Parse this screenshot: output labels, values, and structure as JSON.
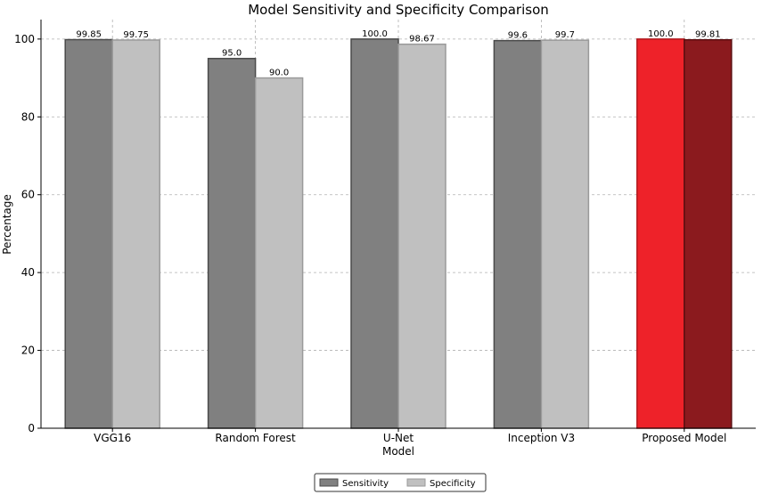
{
  "chart_data": {
    "type": "bar",
    "title": "Model Sensitivity and Specificity Comparison",
    "xlabel": "Model",
    "ylabel": "Percentage",
    "ylim": [
      0,
      105
    ],
    "yticks": [
      0,
      20,
      40,
      60,
      80,
      100
    ],
    "grid": true,
    "legend_position": "bottom-center",
    "categories": [
      "VGG16",
      "Random Forest",
      "U-Net",
      "Inception V3",
      "Proposed Model"
    ],
    "series": [
      {
        "name": "Sensitivity",
        "values": [
          99.85,
          95.0,
          100.0,
          99.6,
          100.0
        ],
        "labels": [
          "99.85",
          "95.0",
          "100.0",
          "99.6",
          "100.0"
        ],
        "color": "#808080",
        "edge": "#4a4a4a"
      },
      {
        "name": "Specificity",
        "values": [
          99.75,
          90.0,
          98.67,
          99.7,
          99.81
        ],
        "labels": [
          "99.75",
          "90.0",
          "98.67",
          "99.7",
          "99.81"
        ],
        "color": "#c0c0c0",
        "edge": "#9a9a9a"
      }
    ],
    "highlight": {
      "category_index": 4,
      "colors": [
        "#ee2229",
        "#8b1a1e"
      ],
      "edges": [
        "#b01a1e",
        "#5a0e10"
      ]
    }
  }
}
